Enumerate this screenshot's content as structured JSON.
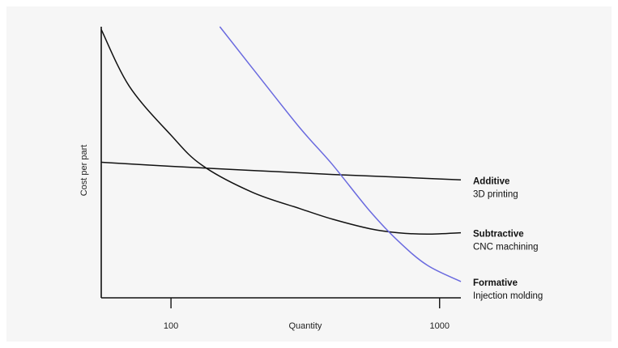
{
  "chart_data": {
    "type": "line",
    "xlabel": "Quantity",
    "ylabel": "Cost per part",
    "x_scale": "log",
    "xlim": [
      55,
      1200
    ],
    "ylim": [
      0,
      100
    ],
    "x_ticks": [
      {
        "value": 100,
        "label": "100"
      },
      {
        "value": 1000,
        "label": "1000"
      }
    ],
    "grid": false,
    "legend_placement": "right, inline at line ends",
    "series": [
      {
        "name": "Additive",
        "subtitle": "3D printing",
        "color": "#111111",
        "x": [
          55,
          100,
          200,
          400,
          700,
          1200
        ],
        "y": [
          50,
          48.5,
          47,
          45.5,
          44.5,
          43.5
        ]
      },
      {
        "name": "Subtractive",
        "subtitle": "CNC machining",
        "color": "#111111",
        "x": [
          55,
          70,
          100,
          130,
          200,
          300,
          400,
          550,
          700,
          900,
          1200
        ],
        "y": [
          99,
          78,
          60,
          49,
          39,
          33,
          29,
          25.5,
          24,
          23.5,
          24
        ]
      },
      {
        "name": "Formative",
        "subtitle": "Injection molding",
        "color": "#6a6adf",
        "x": [
          152,
          200,
          300,
          400,
          550,
          700,
          900,
          1200
        ],
        "y": [
          100,
          85,
          63,
          49,
          32,
          21,
          12,
          6
        ]
      }
    ]
  }
}
